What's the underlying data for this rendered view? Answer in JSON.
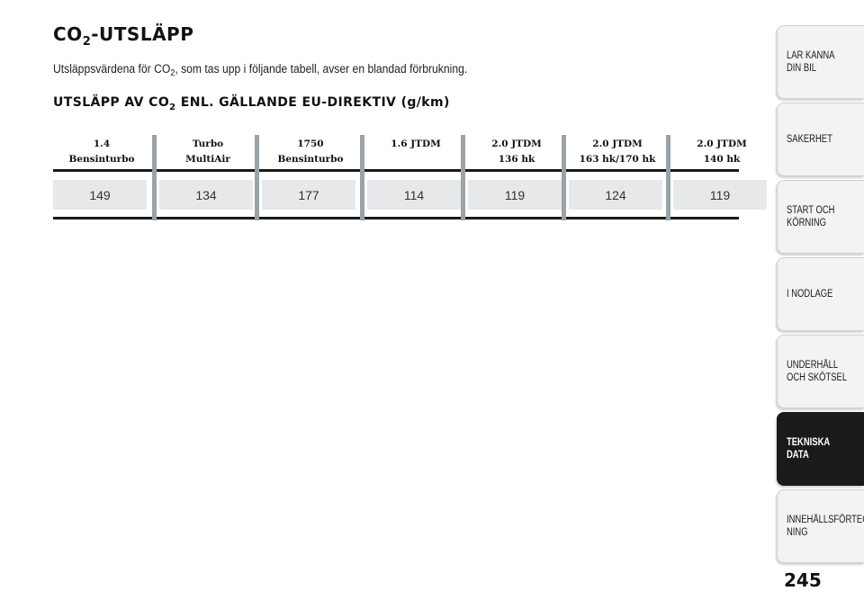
{
  "heading": {
    "main": "CO",
    "sub": "2",
    "rest": "-UTSLÄPP"
  },
  "intro": {
    "before": "Utsläppsvärdena för CO",
    "sub": "2",
    "after": ", som tas upp i följande tabell, avser en blandad förbrukning."
  },
  "table_title": {
    "before": "UTSLÄPP AV CO",
    "sub": "2",
    "after": " ENL. GÄLLANDE EU-DIREKTIV (g/km)"
  },
  "engines": [
    {
      "line1": "1.4",
      "line1_tail": "",
      "line2": "Bensinturbo",
      "value": "149"
    },
    {
      "line1": "Turbo",
      "line1_tail": "",
      "line2": "MultiAir",
      "value": "134"
    },
    {
      "line1": "1750",
      "line1_tail": "",
      "line2": "Bensinturbo",
      "value": "177"
    },
    {
      "line1": "1.6 JTD",
      "line1_tail": "M",
      "line2": "",
      "value": "114"
    },
    {
      "line1": "2.0 JTD",
      "line1_tail": "M",
      "line2": "136 hk",
      "value": "119"
    },
    {
      "line1": "2.0 JTD",
      "line1_tail": "M",
      "line2": "163 hk/170 hk",
      "value": "124"
    },
    {
      "line1": "2.0 JTD",
      "line1_tail": "M",
      "line2": "140 hk",
      "value": "119"
    }
  ],
  "tabs": [
    {
      "label": "LÄR KÄNNA\nDIN BIL",
      "active": false
    },
    {
      "label": "SÄKERHET",
      "active": false
    },
    {
      "label": "START OCH\nKÖRNING",
      "active": false
    },
    {
      "label": "I NÖDLÄGE",
      "active": false
    },
    {
      "label": "UNDERHÅLL\nOCH SKÖTSEL",
      "active": false
    },
    {
      "label": "TEKNISKA DATA",
      "active": true
    },
    {
      "label": "INNEHÅLLSFÖRTECK-\nNING",
      "active": false
    }
  ],
  "page_number": "245",
  "colors": {
    "cell_bg": "#e6e8ea",
    "separator": "#9aa3a8",
    "active_tab": "#1a1a1a"
  }
}
